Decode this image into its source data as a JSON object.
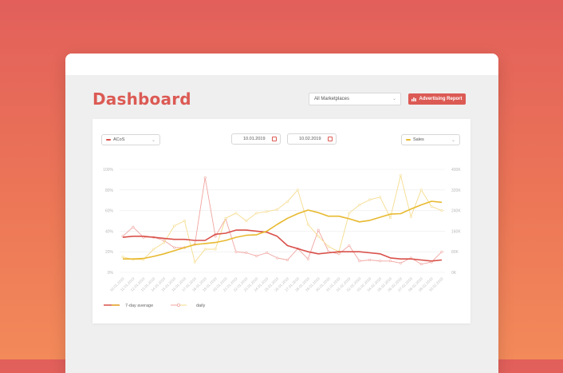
{
  "page": {
    "title": "Dashboard"
  },
  "toolbar": {
    "marketplace": "All Marketplaces",
    "report_label": "Advertising Report"
  },
  "filters": {
    "metric_left": "ACoS",
    "metric_right": "Sales",
    "date_from": "10.01.2019",
    "date_to": "10.02.2019"
  },
  "legend": {
    "avg_label": "7-day average",
    "daily_label": "daily"
  },
  "colors": {
    "acos": "#d9504a",
    "sales": "#e8b92f",
    "acos_light": "#f0a4a0",
    "sales_light": "#f5dc8e",
    "accent": "#dc5a54"
  },
  "chart_data": {
    "type": "line",
    "x": [
      "10.01.2019",
      "11.01.2019",
      "12.01.2019",
      "13.01.2019",
      "14.01.2019",
      "15.01.2019",
      "16.01.2019",
      "17.01.2019",
      "18.01.2019",
      "19.01.2019",
      "20.01.2019",
      "21.01.2019",
      "22.01.2019",
      "23.01.2019",
      "24.01.2019",
      "25.01.2019",
      "26.01.2019",
      "27.01.2019",
      "28.01.2019",
      "29.01.2019",
      "30.01.2019",
      "31.01.2019",
      "01.02.2019",
      "02.02.2019",
      "03.02.2019",
      "04.02.2019",
      "05.02.2019",
      "06.02.2019",
      "07.02.2019",
      "08.02.2019",
      "09.02.2019",
      "10.02.2019"
    ],
    "left_axis": {
      "ticks": [
        "0%",
        "20%",
        "40%",
        "60%",
        "80%",
        "100%"
      ],
      "range": [
        0,
        100
      ]
    },
    "right_axis": {
      "ticks": [
        "0K",
        "80K",
        "160K",
        "240K",
        "320K",
        "400K"
      ],
      "range": [
        0,
        400
      ]
    },
    "series": [
      {
        "axis": "left",
        "style": "avg",
        "values": [
          34,
          35,
          35,
          34,
          33,
          32,
          32,
          31,
          31,
          37,
          38,
          41,
          41,
          40,
          39,
          35,
          26,
          23,
          20,
          18,
          19,
          20,
          20,
          20,
          19,
          18,
          14,
          13,
          13,
          12,
          11,
          12
        ]
      },
      {
        "axis": "left",
        "style": "daily",
        "values": [
          35,
          44,
          34,
          34,
          31,
          24,
          24,
          27,
          92,
          35,
          52,
          20,
          19,
          16,
          19,
          14,
          12,
          23,
          13,
          41,
          20,
          18,
          26,
          11,
          12,
          11,
          11,
          9,
          14,
          8,
          10,
          20
        ]
      },
      {
        "axis": "right",
        "style": "avg",
        "values": [
          52,
          52,
          54,
          62,
          72,
          84,
          96,
          108,
          112,
          116,
          124,
          136,
          144,
          146,
          160,
          186,
          210,
          228,
          242,
          232,
          218,
          218,
          208,
          196,
          202,
          214,
          226,
          228,
          246,
          262,
          276,
          272
        ]
      },
      {
        "axis": "right",
        "style": "daily",
        "values": [
          60,
          50,
          50,
          90,
          115,
          180,
          200,
          40,
          90,
          90,
          210,
          230,
          200,
          230,
          236,
          244,
          275,
          320,
          186,
          140,
          100,
          80,
          230,
          262,
          282,
          292,
          212,
          376,
          216,
          320,
          256,
          240
        ]
      }
    ]
  }
}
